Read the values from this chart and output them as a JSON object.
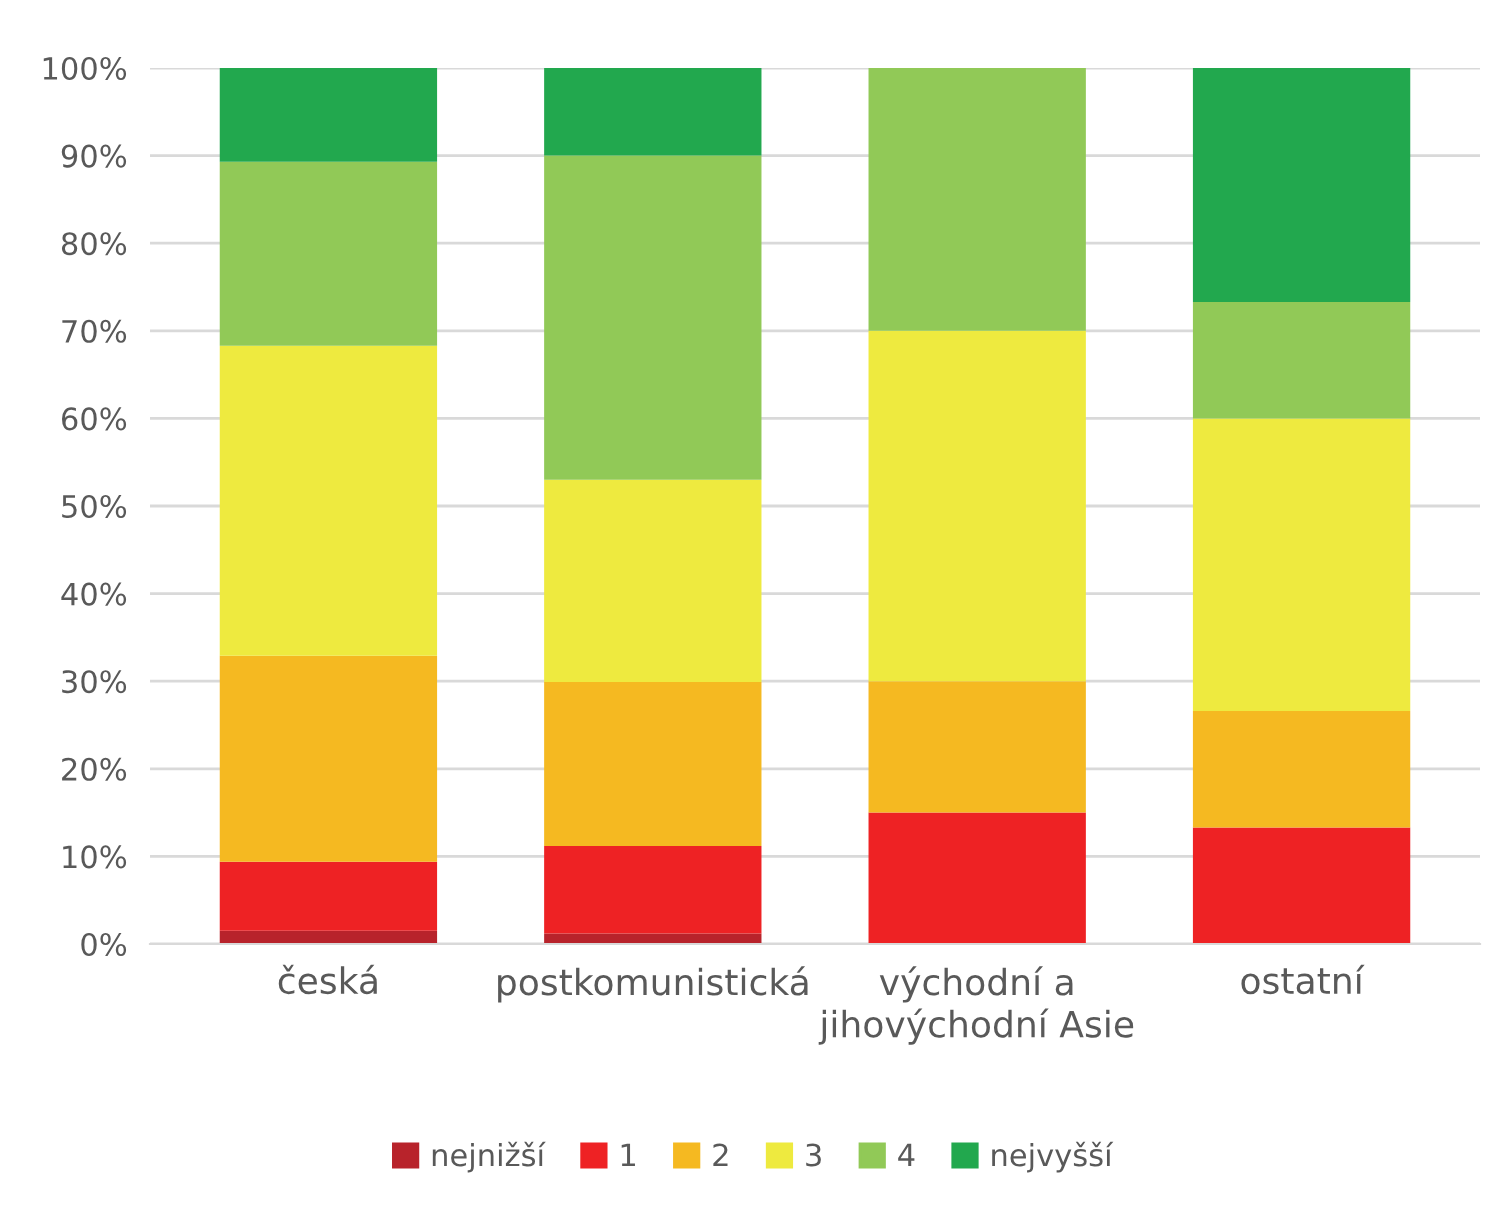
{
  "chart_data": {
    "type": "bar",
    "stacked": true,
    "categories": [
      "česká",
      "postkomunistická",
      "východní a\njihovýchodní Asie",
      "ostatní"
    ],
    "series": [
      {
        "name": "nejnižší",
        "color": "#b8232b",
        "values": [
          1.5,
          1.2,
          0,
          0
        ]
      },
      {
        "name": "1",
        "color": "#ee2224",
        "values": [
          7.9,
          10,
          15,
          13.3
        ]
      },
      {
        "name": "2",
        "color": "#f5b921",
        "values": [
          23.5,
          18.7,
          15,
          13.3
        ]
      },
      {
        "name": "3",
        "color": "#eeea3f",
        "values": [
          35.4,
          23.1,
          40,
          33.4
        ]
      },
      {
        "name": "4",
        "color": "#91c957",
        "values": [
          21,
          37,
          30,
          13.3
        ]
      },
      {
        "name": "nejvyšší",
        "color": "#22a84e",
        "values": [
          10.7,
          10,
          0,
          26.7
        ]
      }
    ],
    "ylim": [
      0,
      100
    ],
    "yticks": [
      {
        "value": 0,
        "label": "0%"
      },
      {
        "value": 10,
        "label": "10%"
      },
      {
        "value": 20,
        "label": "20%"
      },
      {
        "value": 30,
        "label": "30%"
      },
      {
        "value": 40,
        "label": "40%"
      },
      {
        "value": 50,
        "label": "50%"
      },
      {
        "value": 60,
        "label": "60%"
      },
      {
        "value": 70,
        "label": "70%"
      },
      {
        "value": 80,
        "label": "80%"
      },
      {
        "value": 90,
        "label": "90%"
      },
      {
        "value": 100,
        "label": "100%"
      }
    ],
    "grid": "y",
    "legend": "bottom"
  }
}
